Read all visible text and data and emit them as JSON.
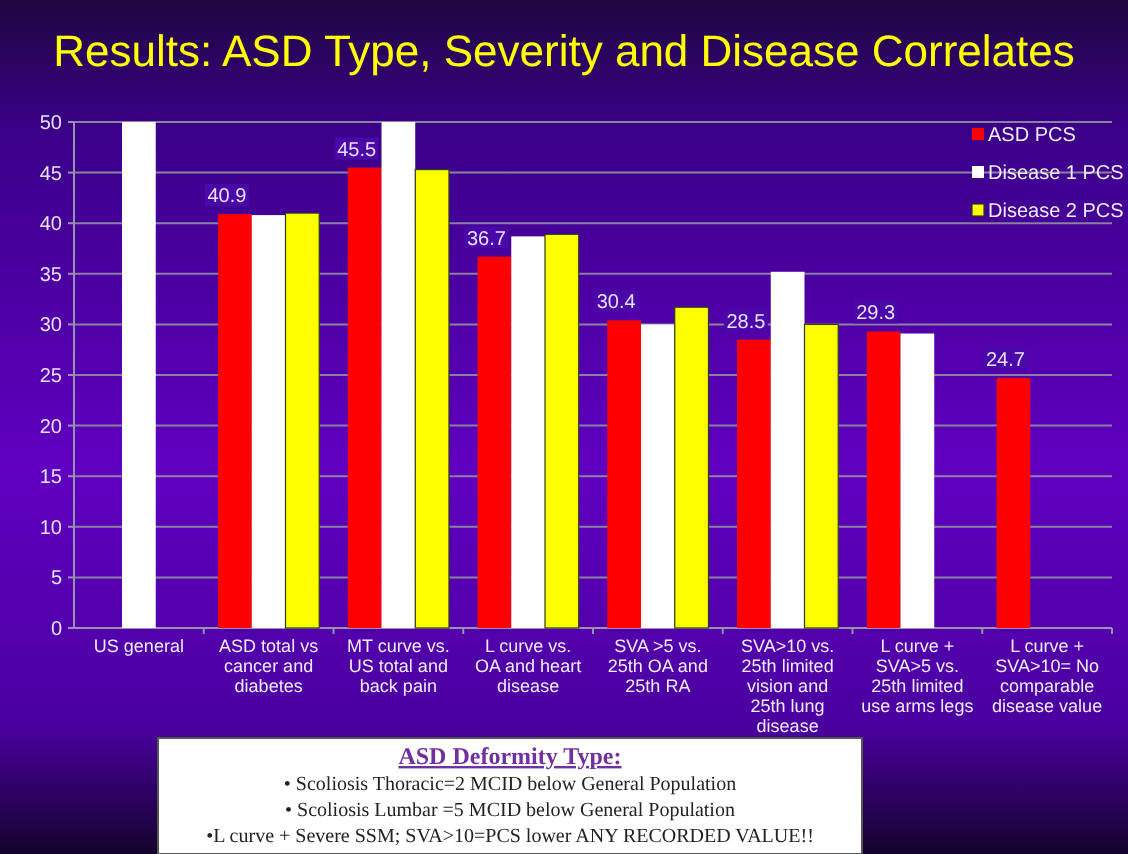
{
  "chart_data": {
    "type": "bar",
    "title": "Results: ASD Type, Severity and Disease Correlates",
    "categories": [
      "US general",
      "ASD total vs cancer and diabetes",
      "MT curve vs. US total and back pain",
      "L curve vs. OA and heart disease",
      "SVA >5 vs. 25th OA and 25th RA",
      "SVA>10 vs. 25th limited vision and 25th lung disease",
      "L curve + SVA>5 vs. 25th limited use arms legs",
      "L curve + SVA>10= No comparable disease value"
    ],
    "series": [
      {
        "name": "ASD PCS",
        "color": "#ff0000",
        "values": [
          null,
          40.9,
          45.5,
          36.7,
          30.4,
          28.5,
          29.3,
          24.7
        ],
        "value_labels": [
          null,
          "40.9",
          "45.5",
          "36.7",
          "30.4",
          "28.5",
          "29.3",
          "24.7"
        ]
      },
      {
        "name": "Disease 1 PCS",
        "color": "#ffffff",
        "values": [
          50,
          40.8,
          50,
          38.7,
          30.0,
          35.2,
          29.1,
          null
        ]
      },
      {
        "name": "Disease 2 PCS",
        "color": "#ffff00",
        "values": [
          null,
          41.0,
          45.3,
          38.9,
          31.7,
          30.0,
          null,
          null
        ]
      }
    ],
    "ylim": [
      0,
      50
    ],
    "yticks": [
      0,
      5,
      10,
      15,
      20,
      25,
      30,
      35,
      40,
      45,
      50
    ],
    "grid": "y",
    "legend": "top right",
    "annotations": [
      "ASD Deformity Type:",
      "• Scoliosis Thoracic=2 MCID below General Population",
      "• Scoliosis Lumbar =5 MCID below General Population",
      "•L curve + Severe SSM; SVA>10=PCS lower ANY RECORDED VALUE!!"
    ]
  }
}
